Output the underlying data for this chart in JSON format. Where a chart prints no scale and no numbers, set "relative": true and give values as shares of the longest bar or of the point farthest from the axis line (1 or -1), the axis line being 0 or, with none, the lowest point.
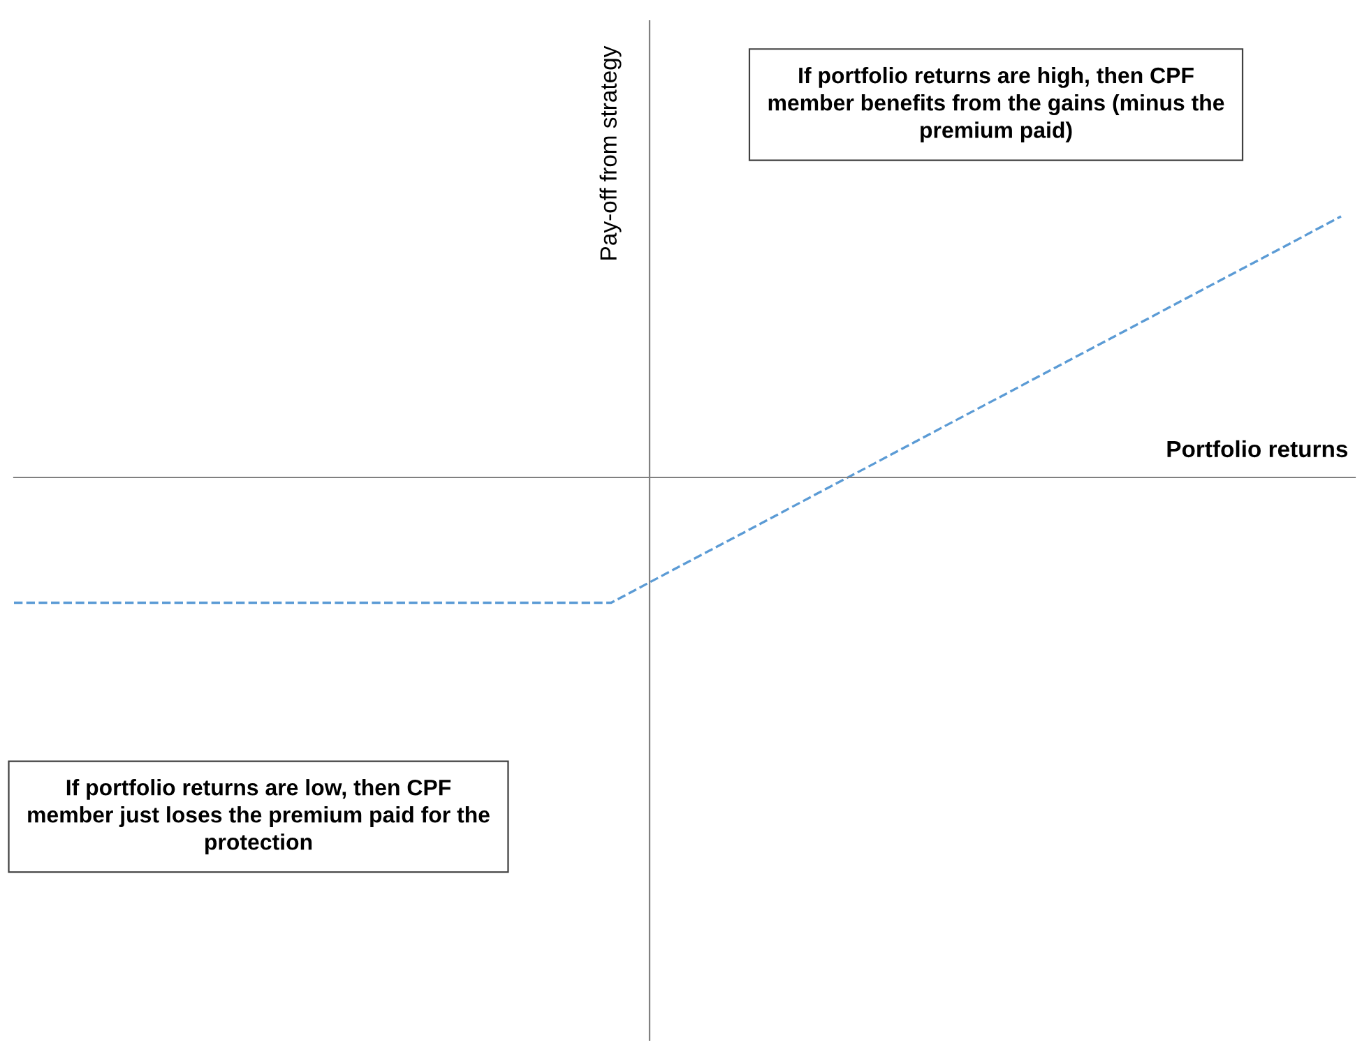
{
  "chart_data": {
    "type": "line",
    "relative": true,
    "xlabel": "Portfolio returns",
    "ylabel": "Pay-off from strategy",
    "categories": [
      null,
      null,
      null,
      null,
      null,
      null,
      null,
      null,
      null,
      null,
      null,
      null,
      null,
      null,
      null,
      null,
      null,
      null,
      null,
      null,
      null
    ],
    "series": [
      {
        "color": "#5b9bd5",
        "values": [
          -0.48,
          -0.48,
          -0.48,
          -0.48,
          -0.48,
          -0.48,
          -0.48,
          -0.48,
          -0.48,
          -0.48,
          -0.345,
          -0.211,
          -0.076,
          0.058,
          0.193,
          0.327,
          0.462,
          0.596,
          0.731,
          0.865,
          1
        ]
      }
    ],
    "line_style": "dashed",
    "marker": "none",
    "annotations": [
      "If portfolio returns are high, then CPF member benefits from the gains (minus the premium paid)",
      "If portfolio returns are low, then CPF member just loses the premium paid for the protection"
    ]
  }
}
